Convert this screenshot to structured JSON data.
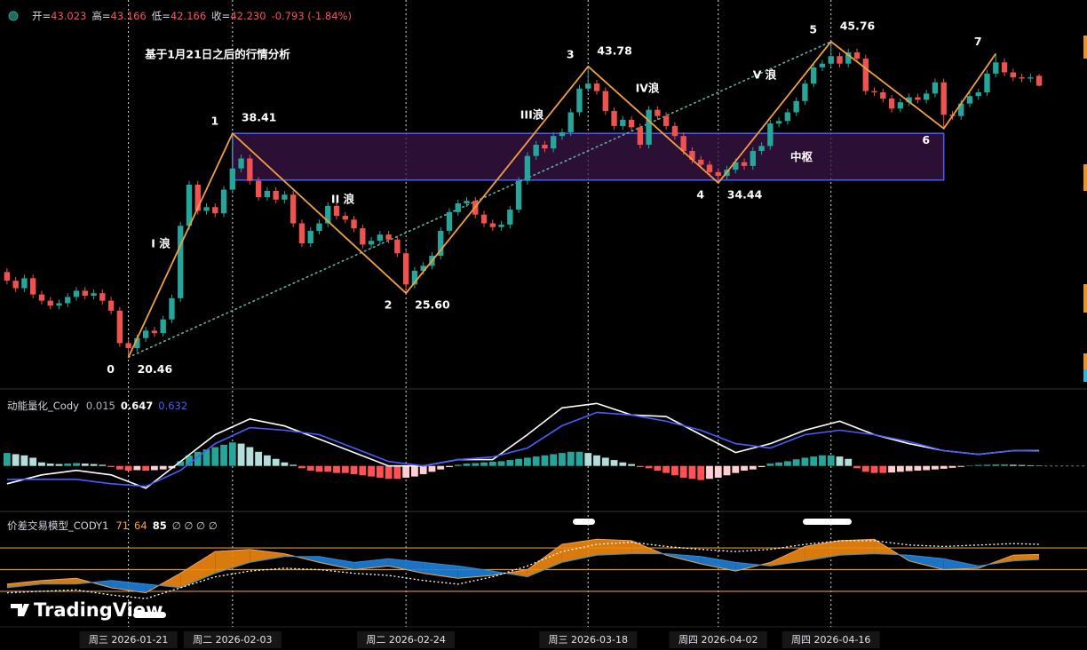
{
  "chart_data": [
    {
      "type": "candlestick",
      "header": {
        "open_label": "开=",
        "open": "43.023",
        "high_label": "高=",
        "high": "43.166",
        "low_label": "低=",
        "low": "42.166",
        "close_label": "收=",
        "close": "42.230",
        "change": "-0.793 (-1.84%)"
      },
      "annotations": [
        "基于1月21日之后的行情分析",
        "I 浪",
        "II 浪",
        "III浪",
        "IV浪",
        "V 浪"
      ],
      "watermark": "TradingView",
      "xlim": [
        -0.5,
        119.5
      ],
      "ylim": [
        18,
        49.1
      ],
      "colors": {
        "up": "#26a69a",
        "down": "#ef5350"
      },
      "categories": [
        null,
        null,
        null,
        null,
        null,
        null,
        null,
        null,
        null,
        null,
        null,
        null,
        null,
        null,
        "周三 2026-01-21",
        null,
        null,
        null,
        null,
        null,
        null,
        null,
        null,
        null,
        null,
        null,
        "周二 2026-02-03",
        null,
        null,
        null,
        null,
        null,
        null,
        null,
        null,
        null,
        null,
        null,
        null,
        null,
        null,
        null,
        null,
        null,
        null,
        null,
        "周二 2026-02-24",
        null,
        null,
        null,
        null,
        null,
        null,
        null,
        null,
        null,
        null,
        null,
        null,
        null,
        null,
        null,
        null,
        null,
        null,
        null,
        null,
        "周三 2026-03-18",
        null,
        null,
        null,
        null,
        null,
        null,
        null,
        null,
        null,
        null,
        null,
        null,
        null,
        null,
        "周四 2026-04-02",
        null,
        null,
        null,
        null,
        null,
        null,
        null,
        null,
        null,
        null,
        null,
        null,
        "周四 2026-04-16",
        null,
        null,
        null,
        null,
        null,
        null,
        null,
        null,
        null,
        null,
        null,
        null,
        null,
        null,
        null,
        null,
        null,
        null,
        null,
        null,
        null,
        null,
        null,
        null
      ],
      "open": [
        27.3,
        26.6,
        26.0,
        26.8,
        25.5,
        25.0,
        24.6,
        24.8,
        25.3,
        25.8,
        25.4,
        25.6,
        25.0,
        24.2,
        21.6,
        21.2,
        22.0,
        22.6,
        22.4,
        23.5,
        25.2,
        31.0,
        34.3,
        32.2,
        32.5,
        32.0,
        33.9,
        35.6,
        36.4,
        34.6,
        33.3,
        33.8,
        33.1,
        33.5,
        31.2,
        29.6,
        30.6,
        31.2,
        32.6,
        31.8,
        31.5,
        30.8,
        29.5,
        29.8,
        30.3,
        29.9,
        28.8,
        26.3,
        27.4,
        27.8,
        28.6,
        30.6,
        32.1,
        32.8,
        33.0,
        31.9,
        31.2,
        30.9,
        31.1,
        32.3,
        34.6,
        36.6,
        37.5,
        37.2,
        38.2,
        38.5,
        40.1,
        42.0,
        42.4,
        41.8,
        40.2,
        39.0,
        39.5,
        38.9,
        37.5,
        40.3,
        39.8,
        39.0,
        38.2,
        37.0,
        36.3,
        35.9,
        35.3,
        35.0,
        35.5,
        36.1,
        35.8,
        37.0,
        37.4,
        39.2,
        39.4,
        40.1,
        41.0,
        42.4,
        43.7,
        44.0,
        44.6,
        44.0,
        44.9,
        44.4,
        41.8,
        41.7,
        41.2,
        40.4,
        40.9,
        41.3,
        41.1,
        41.6,
        42.5,
        39.9,
        39.8,
        40.8,
        41.4,
        41.7,
        43.2,
        44.1,
        43.3,
        42.9,
        42.8,
        43.023
      ],
      "high": [
        27.6,
        26.9,
        27.1,
        27.1,
        25.8,
        25.3,
        25.1,
        25.6,
        26.1,
        26.1,
        25.9,
        25.9,
        25.3,
        24.5,
        21.9,
        22.3,
        22.9,
        22.9,
        23.8,
        25.5,
        31.3,
        34.6,
        34.6,
        32.8,
        32.8,
        34.2,
        38.41,
        36.7,
        36.7,
        34.9,
        34.1,
        34.1,
        33.8,
        33.8,
        31.5,
        30.9,
        31.5,
        32.9,
        32.9,
        32.1,
        31.8,
        31.1,
        30.1,
        30.6,
        30.6,
        30.2,
        29.1,
        27.7,
        28.1,
        28.9,
        30.9,
        32.4,
        33.1,
        33.3,
        33.3,
        32.2,
        31.5,
        31.4,
        32.6,
        34.9,
        36.9,
        37.8,
        37.8,
        38.5,
        38.8,
        40.4,
        42.3,
        43.78,
        42.7,
        42.1,
        40.5,
        39.8,
        39.8,
        39.2,
        40.6,
        40.6,
        40.1,
        39.3,
        38.5,
        37.3,
        36.6,
        36.2,
        35.6,
        35.8,
        36.4,
        36.4,
        37.3,
        37.7,
        39.5,
        39.7,
        40.4,
        41.3,
        42.7,
        44.0,
        44.3,
        45.76,
        44.9,
        45.2,
        45.2,
        44.7,
        42.1,
        42.0,
        41.5,
        41.2,
        41.6,
        41.6,
        41.9,
        42.8,
        42.8,
        40.2,
        41.1,
        41.7,
        42.0,
        43.5,
        44.8,
        44.4,
        43.6,
        43.2,
        43.2,
        43.166
      ],
      "low": [
        26.3,
        25.7,
        25.7,
        25.2,
        24.7,
        24.3,
        24.3,
        24.5,
        25.0,
        25.1,
        25.1,
        24.7,
        23.9,
        21.3,
        20.46,
        20.9,
        21.7,
        22.1,
        22.1,
        23.2,
        24.9,
        30.7,
        31.9,
        31.9,
        31.7,
        31.7,
        33.6,
        35.3,
        34.3,
        33.0,
        33.0,
        32.8,
        32.8,
        30.9,
        29.3,
        29.3,
        30.3,
        30.9,
        31.5,
        31.2,
        30.5,
        29.2,
        29.2,
        29.5,
        29.6,
        28.5,
        25.6,
        26.0,
        27.1,
        27.5,
        28.3,
        30.3,
        31.8,
        32.5,
        31.6,
        30.9,
        30.6,
        30.6,
        30.8,
        32.0,
        34.3,
        36.3,
        36.9,
        36.9,
        37.9,
        38.2,
        39.8,
        41.7,
        41.5,
        39.9,
        38.7,
        38.7,
        38.6,
        37.2,
        37.2,
        39.5,
        38.7,
        37.9,
        36.7,
        36.0,
        35.6,
        35.0,
        34.44,
        34.7,
        35.2,
        35.5,
        35.5,
        36.7,
        37.1,
        38.9,
        39.1,
        39.8,
        40.7,
        42.1,
        43.4,
        43.7,
        43.7,
        43.7,
        44.1,
        41.5,
        41.4,
        40.9,
        40.1,
        40.1,
        40.6,
        40.8,
        40.8,
        41.3,
        38.8,
        39.5,
        39.5,
        40.5,
        41.1,
        41.4,
        42.9,
        43.0,
        42.6,
        42.5,
        42.5,
        42.166
      ],
      "close": [
        26.6,
        26.0,
        26.8,
        25.5,
        25.0,
        24.6,
        24.8,
        25.3,
        25.8,
        25.4,
        25.6,
        25.0,
        24.2,
        21.6,
        21.2,
        22.0,
        22.6,
        22.4,
        23.5,
        25.2,
        31.0,
        34.3,
        32.2,
        32.5,
        32.0,
        33.9,
        35.6,
        36.4,
        34.6,
        33.3,
        33.8,
        33.1,
        33.5,
        31.2,
        29.6,
        30.6,
        31.2,
        32.6,
        31.8,
        31.5,
        30.8,
        29.5,
        29.8,
        30.3,
        29.9,
        28.8,
        26.3,
        27.4,
        27.8,
        28.6,
        30.6,
        32.1,
        32.8,
        33.0,
        31.9,
        31.2,
        30.9,
        31.1,
        32.3,
        34.6,
        36.6,
        37.5,
        37.2,
        38.2,
        38.5,
        40.1,
        42.0,
        42.4,
        41.8,
        40.2,
        39.0,
        39.5,
        38.9,
        37.5,
        40.3,
        39.8,
        39.0,
        38.2,
        37.0,
        36.3,
        35.9,
        35.3,
        35.0,
        35.5,
        36.1,
        35.8,
        37.0,
        37.4,
        39.2,
        39.4,
        40.1,
        41.0,
        42.4,
        43.7,
        44.0,
        44.6,
        44.0,
        44.9,
        44.4,
        41.8,
        41.7,
        41.2,
        40.4,
        40.9,
        41.3,
        41.1,
        41.6,
        42.5,
        39.9,
        39.8,
        40.8,
        41.4,
        41.7,
        43.2,
        44.1,
        43.3,
        42.9,
        42.8,
        42.9,
        42.23
      ],
      "waves": {
        "color": "#f0a040",
        "x": [
          14,
          26,
          46,
          67,
          82,
          95,
          108,
          114
        ],
        "values": [
          20.46,
          38.41,
          25.6,
          43.78,
          34.44,
          45.76,
          38.8,
          44.8
        ],
        "labels": [
          "0",
          "1",
          "2",
          "3",
          "4",
          "5",
          "6",
          "7"
        ],
        "value_labels": [
          "20.46",
          "38.41",
          "25.60",
          "43.78",
          "34.44",
          "45.76",
          null,
          null
        ]
      },
      "trendline": {
        "color": "#5fb3a6",
        "x": [
          14,
          95
        ],
        "values": [
          20.46,
          45.76
        ]
      },
      "zone": {
        "label": "中枢",
        "x": [
          26,
          108
        ],
        "range": [
          34.67,
          38.41
        ],
        "fill": "#3b1446",
        "stroke": "#4a5cff"
      }
    },
    {
      "type": "bar",
      "title": "动能量化_Cody",
      "xlim": [
        -0.5,
        119.5
      ],
      "ylim": [
        -1.9,
        3.2
      ],
      "colors": {
        "pos_up": "#26a69a",
        "pos_down": "#b2dfdb",
        "neg_down": "#ff5252",
        "neg_up": "#ffcdd2"
      },
      "values": [
        0.55,
        0.5,
        0.45,
        0.35,
        0.15,
        0.1,
        0.08,
        0.1,
        0.12,
        0.1,
        0.08,
        0.05,
        -0.05,
        -0.15,
        -0.2,
        -0.18,
        -0.2,
        -0.18,
        -0.15,
        -0.1,
        0.2,
        0.45,
        0.6,
        0.7,
        0.8,
        0.9,
        1.0,
        0.95,
        0.8,
        0.6,
        0.45,
        0.3,
        0.15,
        0.05,
        -0.1,
        -0.2,
        -0.25,
        -0.25,
        -0.3,
        -0.3,
        -0.35,
        -0.4,
        -0.45,
        -0.5,
        -0.55,
        -0.55,
        -0.5,
        -0.45,
        -0.35,
        -0.25,
        -0.15,
        -0.05,
        0.05,
        0.1,
        0.12,
        0.15,
        0.18,
        0.2,
        0.25,
        0.3,
        0.35,
        0.4,
        0.45,
        0.5,
        0.55,
        0.6,
        0.6,
        0.55,
        0.45,
        0.35,
        0.25,
        0.15,
        0.08,
        -0.05,
        -0.1,
        -0.2,
        -0.3,
        -0.4,
        -0.5,
        -0.55,
        -0.6,
        -0.55,
        -0.5,
        -0.4,
        -0.3,
        -0.2,
        -0.15,
        -0.05,
        0.1,
        0.15,
        0.2,
        0.28,
        0.35,
        0.4,
        0.45,
        0.45,
        0.4,
        0.3,
        -0.1,
        -0.25,
        -0.3,
        -0.3,
        -0.28,
        -0.25,
        -0.22,
        -0.2,
        -0.18,
        -0.15,
        -0.12,
        -0.08,
        -0.04,
        0.02,
        0.04,
        0.05,
        0.06,
        0.06,
        0.05,
        0.04,
        0.03,
        0.015
      ],
      "lines": [
        {
          "color": "#ffffff",
          "x": [
            0,
            4,
            8,
            12,
            16,
            20,
            24,
            28,
            32,
            36,
            40,
            44,
            48,
            52,
            56,
            60,
            64,
            68,
            72,
            76,
            80,
            84,
            88,
            92,
            96,
            100,
            104,
            108,
            112,
            116,
            119
          ],
          "values": [
            -0.76,
            -0.38,
            -0.19,
            -0.38,
            -0.95,
            0.19,
            1.33,
            2.0,
            1.7,
            1.14,
            0.57,
            0,
            0,
            0.27,
            0.27,
            1.33,
            2.47,
            2.66,
            2.17,
            2.1,
            1.33,
            0.57,
            0.95,
            1.52,
            1.9,
            1.33,
            0.95,
            0.65,
            0.49,
            0.65,
            0.647
          ]
        },
        {
          "color": "#4a5cff",
          "x": [
            0,
            4,
            8,
            12,
            16,
            20,
            24,
            28,
            32,
            36,
            40,
            44,
            48,
            52,
            56,
            60,
            64,
            68,
            72,
            76,
            80,
            84,
            88,
            92,
            96,
            100,
            104,
            108,
            112,
            116,
            119
          ],
          "values": [
            -0.57,
            -0.57,
            -0.57,
            -0.76,
            -0.87,
            -0.19,
            0.95,
            1.63,
            1.52,
            1.33,
            0.76,
            0.19,
            0,
            0.27,
            0.38,
            0.76,
            1.71,
            2.28,
            2.17,
            1.9,
            1.52,
            0.95,
            0.76,
            1.33,
            1.52,
            1.33,
            1.03,
            0.65,
            0.49,
            0.65,
            0.632
          ]
        }
      ]
    },
    {
      "type": "line",
      "title": "价差交易模型_CODY1",
      "extra": "∅ ∅ ∅ ∅",
      "xlim": [
        -0.5,
        119.5
      ],
      "ylim": [
        -28,
        128
      ],
      "levels": [
        80,
        50,
        20
      ],
      "level_color": "#d99a2b",
      "fills": {
        "above": "#f0870f",
        "below": "#1e7fd8"
      },
      "x": [
        0,
        4,
        8,
        12,
        16,
        20,
        24,
        28,
        32,
        36,
        40,
        44,
        48,
        52,
        56,
        60,
        64,
        68,
        72,
        76,
        80,
        84,
        88,
        92,
        96,
        100,
        104,
        108,
        112,
        116,
        119
      ],
      "fast": {
        "color": "#f7a046",
        "values": [
          30,
          35,
          38,
          25,
          18,
          45,
          75,
          78,
          72,
          60,
          50,
          55,
          45,
          38,
          42,
          50,
          85,
          92,
          90,
          70,
          58,
          48,
          60,
          82,
          90,
          92,
          62,
          50,
          52,
          70,
          71
        ]
      },
      "slow": {
        "color": "#2b8ce0",
        "values": [
          25,
          30,
          30,
          35,
          30,
          25,
          45,
          60,
          68,
          68,
          60,
          65,
          60,
          55,
          48,
          40,
          60,
          70,
          72,
          72,
          68,
          60,
          55,
          62,
          70,
          72,
          70,
          65,
          55,
          62,
          64
        ]
      },
      "signal": {
        "color": "#ffffff",
        "values": [
          18,
          20,
          22,
          15,
          10,
          25,
          40,
          48,
          52,
          50,
          45,
          42,
          35,
          30,
          40,
          55,
          75,
          85,
          88,
          82,
          78,
          75,
          78,
          85,
          90,
          90,
          84,
          82,
          84,
          86,
          85
        ]
      }
    }
  ]
}
